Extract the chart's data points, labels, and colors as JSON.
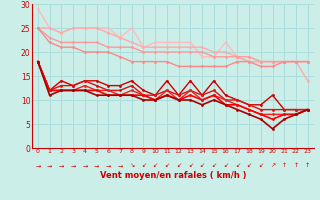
{
  "x": [
    0,
    1,
    2,
    3,
    4,
    5,
    6,
    7,
    8,
    9,
    10,
    11,
    12,
    13,
    14,
    15,
    16,
    17,
    18,
    19,
    20,
    21,
    22,
    23
  ],
  "lines": [
    {
      "y": [
        29,
        25,
        24,
        25,
        25,
        25,
        25,
        23,
        25,
        21,
        22,
        22,
        22,
        22,
        19,
        19,
        22,
        19,
        18,
        18,
        18,
        18,
        18,
        18
      ],
      "color": "#ffbbbb",
      "lw": 1.0,
      "marker": "o",
      "ms": 2.0,
      "zorder": 3
    },
    {
      "y": [
        25,
        25,
        24,
        25,
        25,
        25,
        24,
        23,
        22,
        21,
        21,
        21,
        21,
        21,
        21,
        20,
        20,
        19,
        18,
        18,
        18,
        18,
        18,
        14
      ],
      "color": "#ffaaaa",
      "lw": 1.0,
      "marker": "o",
      "ms": 2.0,
      "zorder": 3
    },
    {
      "y": [
        25,
        23,
        22,
        22,
        22,
        22,
        21,
        21,
        21,
        20,
        20,
        20,
        20,
        20,
        20,
        19,
        19,
        19,
        19,
        18,
        18,
        18,
        18,
        18
      ],
      "color": "#ff9999",
      "lw": 1.0,
      "marker": "o",
      "ms": 2.0,
      "zorder": 3
    },
    {
      "y": [
        25,
        22,
        21,
        21,
        20,
        20,
        20,
        19,
        18,
        18,
        18,
        18,
        17,
        17,
        17,
        17,
        17,
        18,
        18,
        17,
        17,
        18,
        18,
        18
      ],
      "color": "#ff8888",
      "lw": 1.0,
      "marker": "o",
      "ms": 2.0,
      "zorder": 3
    },
    {
      "y": [
        18,
        12,
        14,
        13,
        14,
        14,
        13,
        13,
        14,
        12,
        11,
        14,
        11,
        14,
        11,
        14,
        11,
        10,
        9,
        9,
        11,
        8,
        8,
        8
      ],
      "color": "#cc0000",
      "lw": 1.0,
      "marker": "o",
      "ms": 2.0,
      "zorder": 4
    },
    {
      "y": [
        18,
        12,
        13,
        13,
        14,
        13,
        12,
        12,
        13,
        11,
        11,
        12,
        11,
        12,
        11,
        12,
        10,
        10,
        9,
        8,
        8,
        8,
        8,
        8
      ],
      "color": "#dd1111",
      "lw": 1.0,
      "marker": "o",
      "ms": 2.0,
      "zorder": 4
    },
    {
      "y": [
        18,
        12,
        12,
        12,
        13,
        12,
        12,
        11,
        12,
        11,
        10,
        12,
        10,
        12,
        10,
        11,
        10,
        9,
        8,
        7,
        7,
        7,
        7,
        8
      ],
      "color": "#ee2222",
      "lw": 1.0,
      "marker": "o",
      "ms": 2.0,
      "zorder": 4
    },
    {
      "y": [
        18,
        12,
        12,
        12,
        12,
        12,
        11,
        11,
        11,
        11,
        10,
        11,
        10,
        11,
        10,
        11,
        9,
        9,
        8,
        7,
        6,
        7,
        7,
        8
      ],
      "color": "#ff0000",
      "lw": 1.2,
      "marker": "o",
      "ms": 2.0,
      "zorder": 5
    },
    {
      "y": [
        18,
        11,
        12,
        12,
        12,
        11,
        11,
        11,
        11,
        10,
        10,
        11,
        10,
        10,
        9,
        10,
        9,
        8,
        7,
        6,
        4,
        6,
        7,
        8
      ],
      "color": "#aa0000",
      "lw": 1.2,
      "marker": "o",
      "ms": 2.0,
      "zorder": 5
    }
  ],
  "xlabel": "Vent moyen/en rafales ( km/h )",
  "ylim": [
    0,
    30
  ],
  "xlim": [
    -0.5,
    23.5
  ],
  "yticks": [
    0,
    5,
    10,
    15,
    20,
    25,
    30
  ],
  "xticks": [
    0,
    1,
    2,
    3,
    4,
    5,
    6,
    7,
    8,
    9,
    10,
    11,
    12,
    13,
    14,
    15,
    16,
    17,
    18,
    19,
    20,
    21,
    22,
    23
  ],
  "bg_color": "#cceee8",
  "grid_color": "#aadddd",
  "text_color": "#cc0000",
  "arrow_symbols": [
    "→",
    "→",
    "→",
    "→",
    "→",
    "→",
    "→",
    "→",
    "↘",
    "↙",
    "↙",
    "↙",
    "↙",
    "↙",
    "↙",
    "↙",
    "↙",
    "↙",
    "↙",
    "↙",
    "↗",
    "↑",
    "↑",
    "↑"
  ]
}
